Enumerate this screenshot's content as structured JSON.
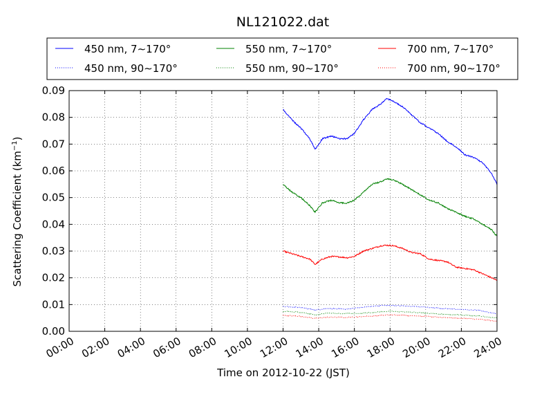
{
  "chart_data": {
    "type": "line",
    "title": "NL121022.dat",
    "xlabel": "Time on 2012-10-22 (JST)",
    "ylabel": "Scattering Coefficient (km",
    "ylabel_sup": "−1",
    "ylabel_end": ")",
    "xlim": [
      0,
      24
    ],
    "ylim": [
      0,
      0.09
    ],
    "grid": true,
    "legend_position": "top",
    "x_ticks": [
      0,
      2,
      4,
      6,
      8,
      10,
      12,
      14,
      16,
      18,
      20,
      22,
      24
    ],
    "x_tick_labels": [
      "00:00",
      "02:00",
      "04:00",
      "06:00",
      "08:00",
      "10:00",
      "12:00",
      "14:00",
      "16:00",
      "18:00",
      "20:00",
      "22:00",
      "24:00"
    ],
    "y_ticks": [
      0,
      0.01,
      0.02,
      0.03,
      0.04,
      0.05,
      0.06,
      0.07,
      0.08,
      0.09
    ],
    "y_tick_labels": [
      "0.00",
      "0.01",
      "0.02",
      "0.03",
      "0.04",
      "0.05",
      "0.06",
      "0.07",
      "0.08",
      "0.09"
    ],
    "series": [
      {
        "name": "450 nm, 7∼170°",
        "color": "#0000ff",
        "style": "solid",
        "x": [
          12,
          12.5,
          13,
          13.5,
          13.8,
          14.2,
          14.7,
          15.2,
          15.6,
          16,
          16.5,
          17,
          17.5,
          17.8,
          18.2,
          18.7,
          19.2,
          19.7,
          20.2,
          20.7,
          21.2,
          21.7,
          22.2,
          22.7,
          23.2,
          23.7,
          24
        ],
        "y": [
          0.083,
          0.079,
          0.076,
          0.072,
          0.068,
          0.072,
          0.073,
          0.072,
          0.072,
          0.074,
          0.079,
          0.083,
          0.085,
          0.087,
          0.086,
          0.084,
          0.081,
          0.078,
          0.076,
          0.074,
          0.071,
          0.069,
          0.066,
          0.065,
          0.063,
          0.059,
          0.055
        ]
      },
      {
        "name": "450 nm, 90∼170°",
        "color": "#0000ff",
        "style": "dotted",
        "x": [
          12,
          13,
          13.8,
          14.5,
          15.5,
          16.5,
          17.5,
          18,
          19,
          20,
          21,
          22,
          23,
          24
        ],
        "y": [
          0.0093,
          0.0089,
          0.008,
          0.0085,
          0.0083,
          0.009,
          0.0096,
          0.0098,
          0.0094,
          0.009,
          0.0085,
          0.0082,
          0.0078,
          0.0065
        ]
      },
      {
        "name": "550 nm, 7∼170°",
        "color": "#008000",
        "style": "solid",
        "x": [
          12,
          12.5,
          13,
          13.5,
          13.8,
          14.2,
          14.7,
          15.2,
          15.6,
          16,
          16.5,
          17,
          17.5,
          17.8,
          18.2,
          18.7,
          19.2,
          19.7,
          20.2,
          20.7,
          21.2,
          21.7,
          22.2,
          22.7,
          23.2,
          23.7,
          24
        ],
        "y": [
          0.055,
          0.052,
          0.05,
          0.047,
          0.0445,
          0.048,
          0.049,
          0.048,
          0.048,
          0.049,
          0.052,
          0.055,
          0.056,
          0.057,
          0.0565,
          0.055,
          0.053,
          0.051,
          0.049,
          0.048,
          0.046,
          0.0445,
          0.043,
          0.042,
          0.04,
          0.038,
          0.0355
        ]
      },
      {
        "name": "550 nm, 90∼170°",
        "color": "#008000",
        "style": "dotted",
        "x": [
          12,
          13,
          13.8,
          14.5,
          15.5,
          16.5,
          17.5,
          18,
          19,
          20,
          21,
          22,
          23,
          24
        ],
        "y": [
          0.0075,
          0.0071,
          0.0062,
          0.0068,
          0.0066,
          0.0068,
          0.0073,
          0.0075,
          0.0072,
          0.0068,
          0.0064,
          0.0061,
          0.0057,
          0.005
        ]
      },
      {
        "name": "700 nm, 7∼170°",
        "color": "#ff0000",
        "style": "solid",
        "x": [
          12,
          12.5,
          13,
          13.5,
          13.8,
          14.2,
          14.7,
          15.2,
          15.6,
          16,
          16.5,
          17,
          17.5,
          17.8,
          18.2,
          18.7,
          19.2,
          19.7,
          20.2,
          20.7,
          21.2,
          21.7,
          22.2,
          22.7,
          23.2,
          23.7,
          24
        ],
        "y": [
          0.03,
          0.029,
          0.028,
          0.027,
          0.025,
          0.027,
          0.028,
          0.0278,
          0.0275,
          0.028,
          0.03,
          0.031,
          0.032,
          0.0322,
          0.032,
          0.031,
          0.0295,
          0.029,
          0.027,
          0.0265,
          0.026,
          0.024,
          0.0235,
          0.023,
          0.0215,
          0.02,
          0.019
        ]
      },
      {
        "name": "700 nm, 90∼170°",
        "color": "#ff0000",
        "style": "dotted",
        "x": [
          12,
          13,
          13.8,
          14.5,
          15.5,
          16.5,
          17.5,
          18,
          19,
          20,
          21,
          22,
          23,
          24
        ],
        "y": [
          0.006,
          0.0056,
          0.0048,
          0.0053,
          0.0052,
          0.0055,
          0.006,
          0.0062,
          0.0059,
          0.0056,
          0.0052,
          0.0049,
          0.0045,
          0.0038
        ]
      }
    ]
  }
}
